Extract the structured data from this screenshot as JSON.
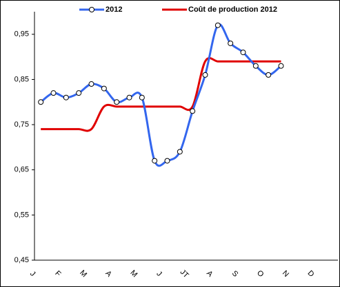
{
  "chart_data": {
    "type": "line",
    "categories": [
      "J",
      null,
      "F",
      null,
      "M",
      null,
      "A",
      null,
      "M",
      null,
      "J",
      null,
      "JT",
      null,
      "A",
      null,
      "S",
      null,
      "O",
      null,
      "N",
      null,
      "D",
      null
    ],
    "series": [
      {
        "name": "2012",
        "color": "#3366ee",
        "marker": true,
        "values": [
          0.8,
          0.82,
          0.81,
          0.82,
          0.84,
          0.83,
          0.8,
          0.81,
          0.81,
          0.67,
          0.67,
          0.69,
          0.78,
          0.86,
          0.97,
          0.93,
          0.91,
          0.88,
          0.86,
          0.88,
          null,
          null,
          null,
          null
        ]
      },
      {
        "name": "Coût de production 2012",
        "color": "#e00000",
        "marker": false,
        "values": [
          0.74,
          0.74,
          0.74,
          0.74,
          0.74,
          0.79,
          0.79,
          0.79,
          0.79,
          0.79,
          0.79,
          0.79,
          0.79,
          0.89,
          0.89,
          0.89,
          0.89,
          0.89,
          0.89,
          0.89,
          null,
          null,
          null,
          null
        ]
      }
    ],
    "ylim": [
      0.45,
      1.0
    ],
    "yticks": [
      {
        "value": 0.45,
        "label": "0,45"
      },
      {
        "value": 0.55,
        "label": "0,55"
      },
      {
        "value": 0.65,
        "label": "0,65"
      },
      {
        "value": 0.75,
        "label": "0,75"
      },
      {
        "value": 0.85,
        "label": "0,85"
      },
      {
        "value": 0.95,
        "label": "0,95"
      }
    ],
    "legend": "top",
    "smooth": true
  }
}
